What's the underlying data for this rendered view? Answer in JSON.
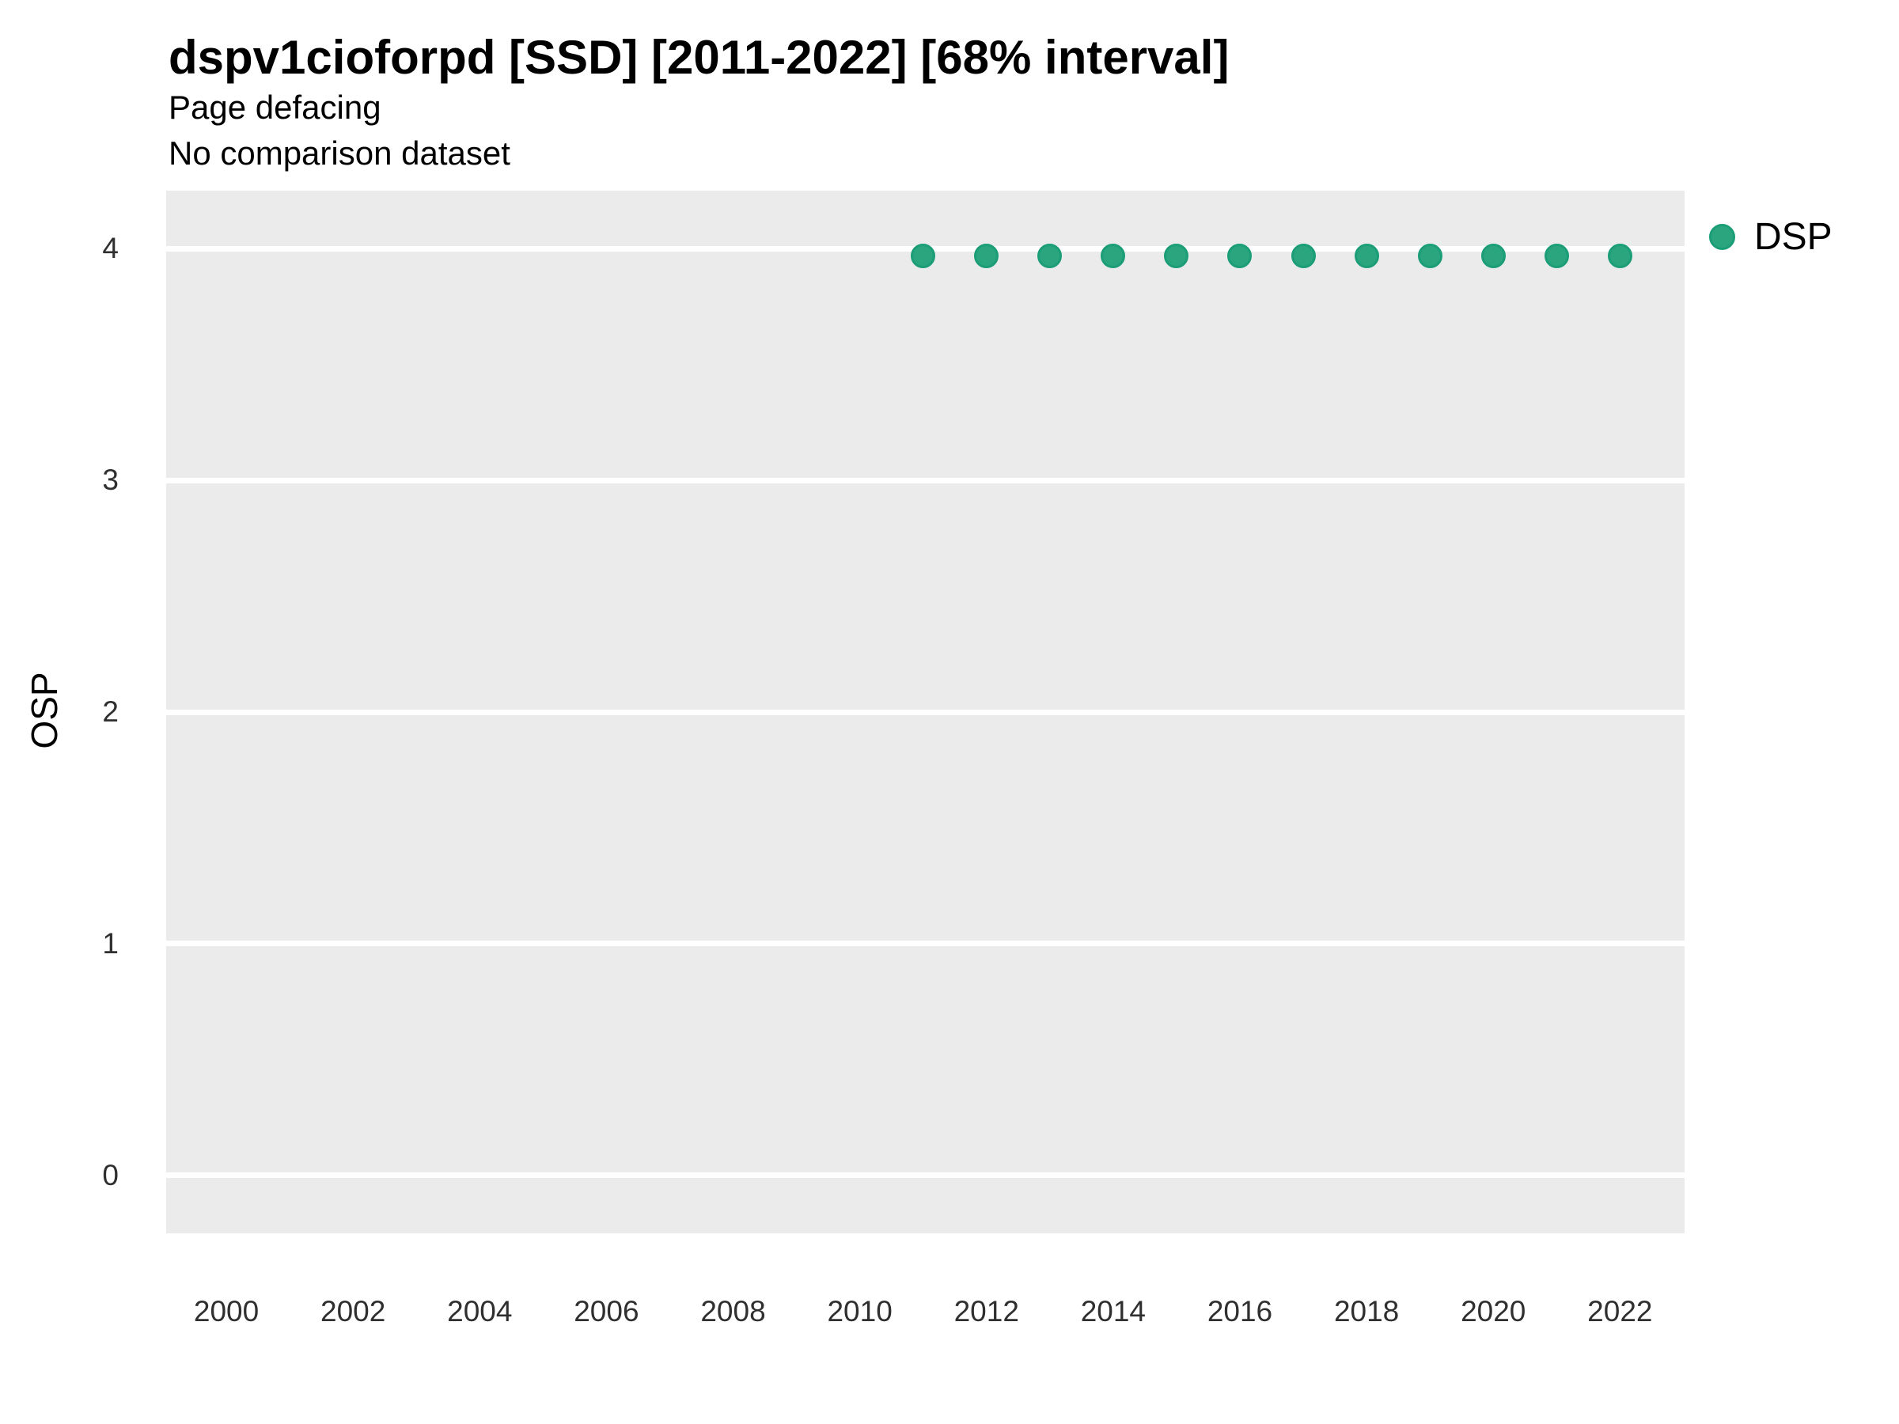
{
  "header": {
    "title": "dspv1cioforpd [SSD] [2011-2022] [68% interval]",
    "subtitle_line1": "Page defacing",
    "subtitle_line2": "No comparison dataset"
  },
  "y_axis": {
    "label": "OSP"
  },
  "legend": {
    "label": "DSP"
  },
  "colors": {
    "point_fill": "#2AA57E",
    "point_edge": "#1B9E77",
    "panel_background": "#EBEBEB",
    "gridline": "#FFFFFF",
    "tick_text": "#2F2F2F"
  },
  "chart_data": {
    "type": "scatter",
    "title": "dspv1cioforpd [SSD] [2011-2022] [68% interval]",
    "subtitle": [
      "Page defacing",
      "No comparison dataset"
    ],
    "xlabel": "",
    "ylabel": "OSP",
    "series": [
      {
        "name": "DSP",
        "color": "#2AA57E",
        "x": [
          2011,
          2012,
          2013,
          2014,
          2015,
          2016,
          2017,
          2018,
          2019,
          2020,
          2021,
          2022
        ],
        "y": [
          3.97,
          3.97,
          3.97,
          3.97,
          3.97,
          3.97,
          3.97,
          3.97,
          3.97,
          3.97,
          3.97,
          3.97
        ]
      }
    ],
    "x_ticks": [
      2000,
      2002,
      2004,
      2006,
      2008,
      2010,
      2012,
      2014,
      2016,
      2018,
      2020,
      2022
    ],
    "y_ticks": [
      0,
      1,
      2,
      3,
      4
    ],
    "xlim": [
      1999.05,
      2023.02
    ],
    "ylim": [
      -0.25,
      4.25
    ],
    "grid": "horizontal-major-only",
    "legend_position": "right"
  }
}
